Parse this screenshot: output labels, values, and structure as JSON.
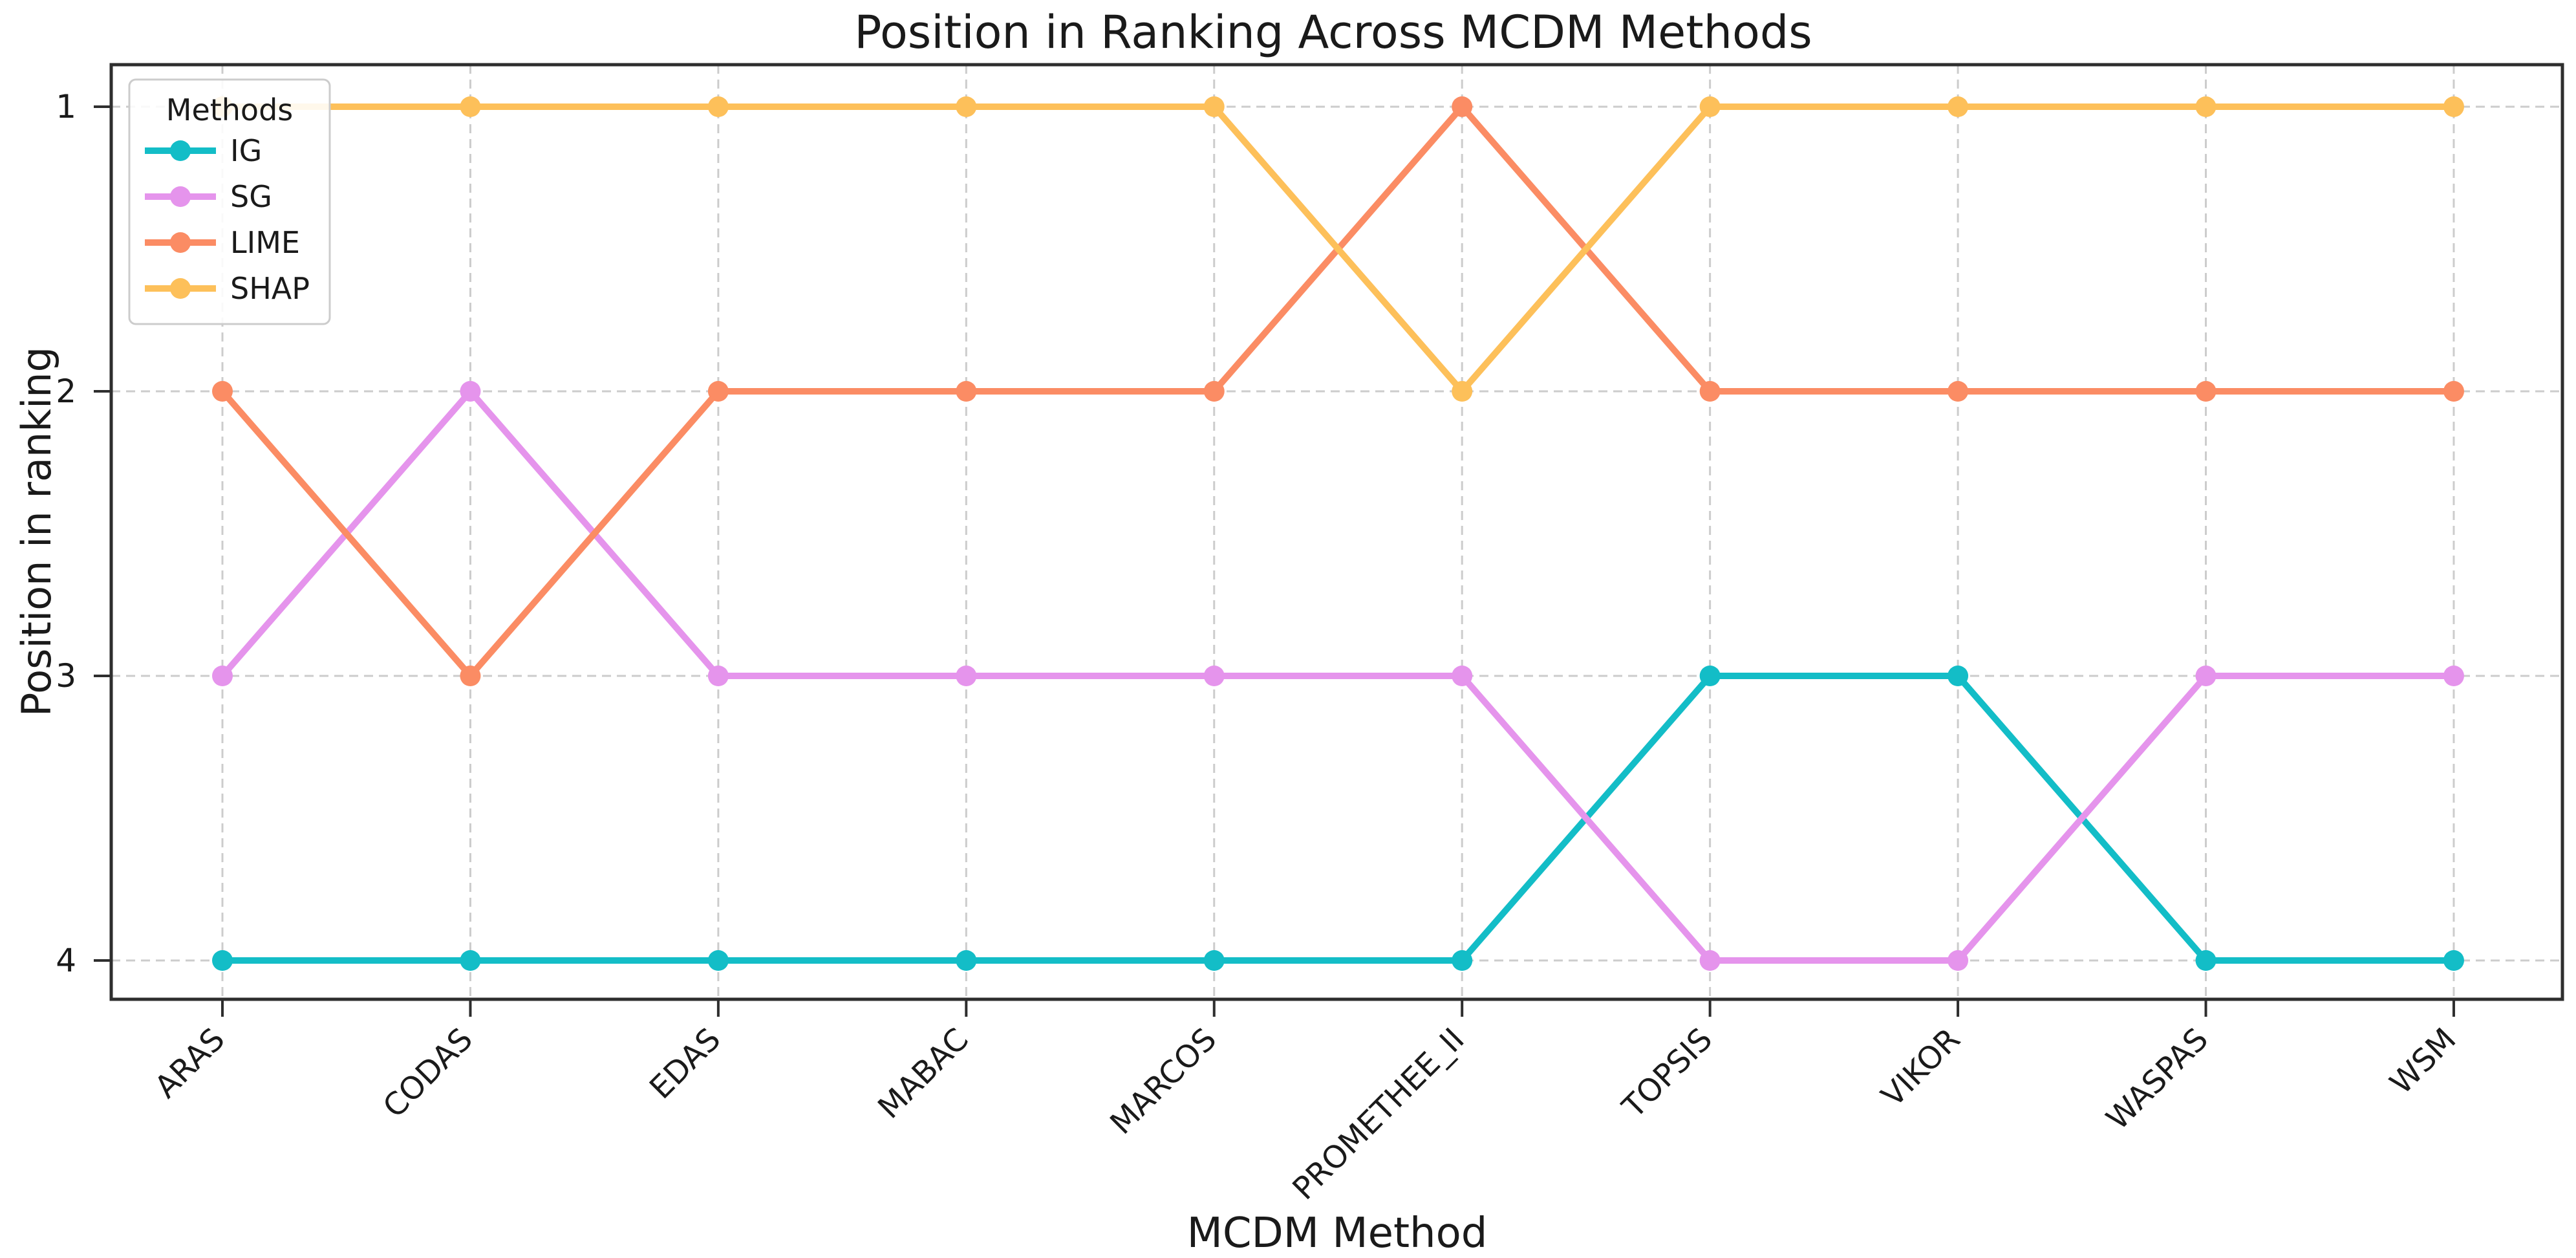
{
  "chart_data": {
    "type": "line",
    "title": "Position in Ranking Across MCDM Methods",
    "xlabel": "MCDM Method",
    "ylabel": "Position in ranking",
    "legend_title": "Methods",
    "legend_position": "upper left",
    "grid": "dashed, both axes, at every tick",
    "y_axis_inverted": true,
    "yticks": [
      1,
      2,
      3,
      4
    ],
    "ylim": [
      1,
      4
    ],
    "categories": [
      "ARAS",
      "CODAS",
      "EDAS",
      "MABAC",
      "MARCOS",
      "PROMETHEE_II",
      "TOPSIS",
      "VIKOR",
      "WASPAS",
      "WSM"
    ],
    "series": [
      {
        "name": "IG",
        "color": "#13bdc7",
        "values": [
          4,
          4,
          4,
          4,
          4,
          4,
          3,
          3,
          4,
          4
        ]
      },
      {
        "name": "SG",
        "color": "#e594ec",
        "values": [
          3,
          2,
          3,
          3,
          3,
          3,
          4,
          4,
          3,
          3
        ]
      },
      {
        "name": "LIME",
        "color": "#fb8c64",
        "values": [
          2,
          3,
          2,
          2,
          2,
          1,
          2,
          2,
          2,
          2
        ]
      },
      {
        "name": "SHAP",
        "color": "#fdc05a",
        "values": [
          1,
          1,
          1,
          1,
          1,
          2,
          1,
          1,
          1,
          1
        ]
      }
    ],
    "colors": {
      "grid": "#cccccc",
      "spine": "#2e2e2e",
      "background": "#ffffff",
      "text": "#1a1a1a",
      "legend_border": "#cccccc"
    }
  }
}
